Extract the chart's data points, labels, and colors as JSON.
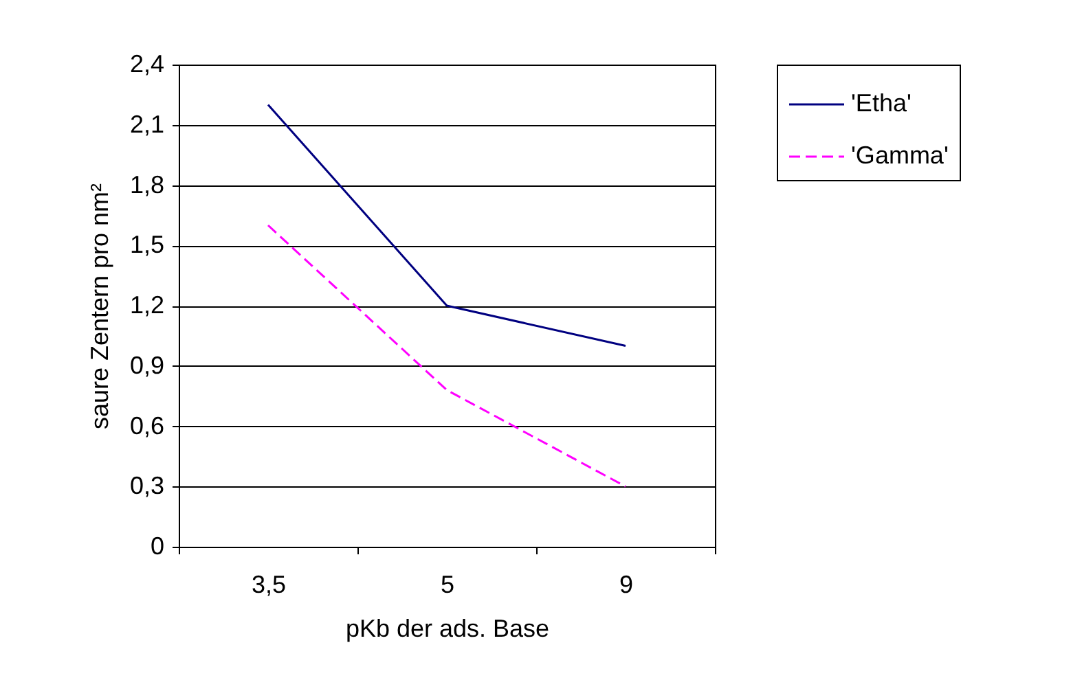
{
  "chart_data": {
    "type": "line",
    "xlabel": "pKb der ads. Base",
    "ylabel": "saure Zentern pro nm²",
    "categories": [
      "3,5",
      "5",
      "9"
    ],
    "series": [
      {
        "name": "'Etha'",
        "color": "#000080",
        "line_style": "solid",
        "values": [
          2.2,
          1.2,
          1.0
        ]
      },
      {
        "name": "'Gamma'",
        "color": "#ff00ff",
        "line_style": "dashed",
        "values": [
          1.6,
          0.78,
          0.3
        ]
      }
    ],
    "ylim": [
      0,
      2.4
    ],
    "yticks": [
      {
        "value": 0,
        "label": "0"
      },
      {
        "value": 0.3,
        "label": "0,3"
      },
      {
        "value": 0.6,
        "label": "0,6"
      },
      {
        "value": 0.9,
        "label": "0,9"
      },
      {
        "value": 1.2,
        "label": "1,2"
      },
      {
        "value": 1.5,
        "label": "1,5"
      },
      {
        "value": 1.8,
        "label": "1,8"
      },
      {
        "value": 2.1,
        "label": "2,1"
      },
      {
        "value": 2.4,
        "label": "2,4"
      }
    ],
    "grid": "y",
    "legend": "right",
    "marker": "none"
  }
}
